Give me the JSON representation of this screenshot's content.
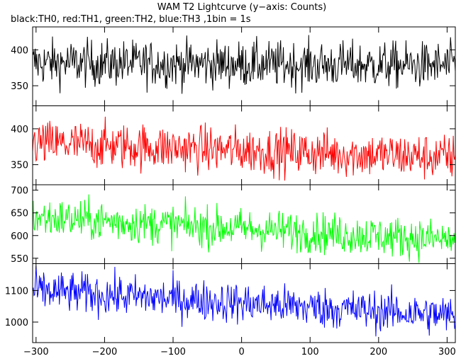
{
  "chart_data": {
    "type": "line",
    "title": "WAM T2 Lightcurve (y−axis: Counts)",
    "subtitle": "black:TH0, red:TH1, green:TH2, blue:TH3 ,1bin = 1s",
    "xlabel": "",
    "ylabel": "",
    "xlim": [
      -305,
      312
    ],
    "x_tick_labels": [
      "−300",
      "−200",
      "−100",
      "0",
      "100",
      "200",
      "300"
    ],
    "x_ticks": [
      -300,
      -200,
      -100,
      0,
      100,
      200,
      300
    ],
    "grid": false,
    "panels": [
      {
        "name": "TH0",
        "color": "#000000",
        "ylim": [
          322,
          432
        ],
        "y_ticks": [
          350,
          400
        ],
        "y_tick_labels": [
          "350",
          "400"
        ],
        "mean_start": 382,
        "mean_end": 378,
        "noise": 16
      },
      {
        "name": "TH1",
        "color": "#ff0000",
        "ylim": [
          322,
          432
        ],
        "y_ticks": [
          350,
          400
        ],
        "y_tick_labels": [
          "350",
          "400"
        ],
        "mean_start": 380,
        "mean_end": 360,
        "noise": 16
      },
      {
        "name": "TH2",
        "color": "#00ff00",
        "ylim": [
          538,
          712
        ],
        "y_ticks": [
          550,
          600,
          650,
          700
        ],
        "y_tick_labels": [
          "550",
          "600",
          "650",
          "700"
        ],
        "mean_start": 640,
        "mean_end": 590,
        "noise": 22
      },
      {
        "name": "TH3",
        "color": "#0000ff",
        "ylim": [
          935,
          1185
        ],
        "y_ticks": [
          1000,
          1100
        ],
        "y_tick_labels": [
          "1000",
          "1100"
        ],
        "mean_start": 1100,
        "mean_end": 1020,
        "noise": 32
      }
    ]
  }
}
